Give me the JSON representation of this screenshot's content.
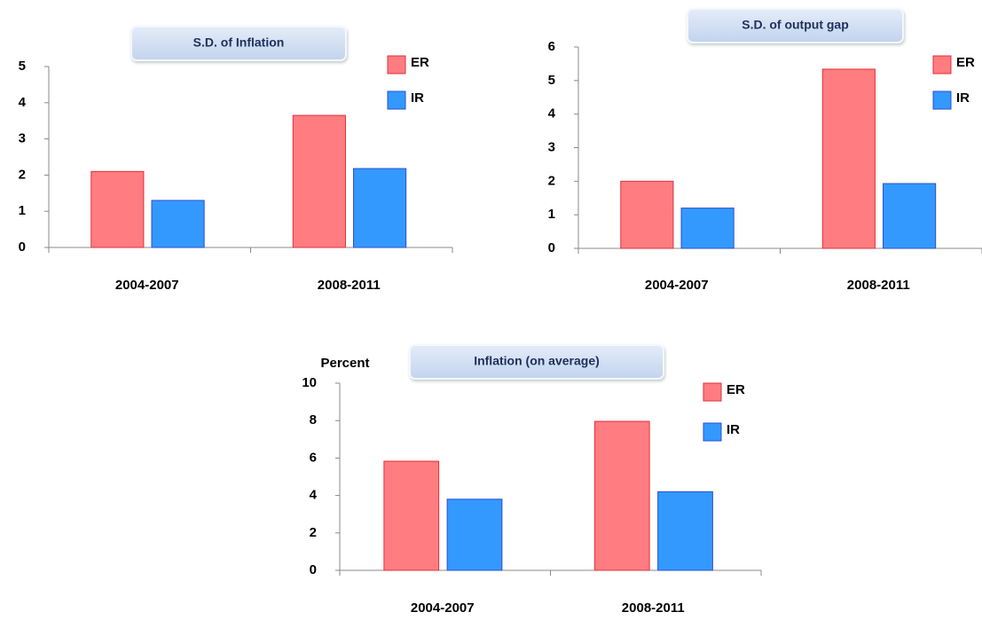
{
  "chart_data": [
    {
      "type": "bar",
      "title": "S.D. of Inflation",
      "categories": [
        "2004-2007",
        "2008-2011"
      ],
      "series": [
        {
          "name": "ER",
          "color": "#ff7c80",
          "values": [
            2.1,
            3.65
          ]
        },
        {
          "name": "IR",
          "color": "#3399ff",
          "values": [
            1.3,
            2.18
          ]
        }
      ],
      "ylim": [
        0,
        5
      ],
      "yticks": [
        0,
        1,
        2,
        3,
        4,
        5
      ]
    },
    {
      "type": "bar",
      "title": "S.D. of output gap",
      "categories": [
        "2004-2007",
        "2008-2011"
      ],
      "series": [
        {
          "name": "ER",
          "color": "#ff7c80",
          "values": [
            2.0,
            5.34
          ]
        },
        {
          "name": "IR",
          "color": "#3399ff",
          "values": [
            1.2,
            1.93
          ]
        }
      ],
      "ylim": [
        0,
        6
      ],
      "yticks": [
        0,
        1,
        2,
        3,
        4,
        5,
        6
      ]
    },
    {
      "type": "bar",
      "title": "Inflation (on average)",
      "ylabel": "Percent",
      "categories": [
        "2004-2007",
        "2008-2011"
      ],
      "series": [
        {
          "name": "ER",
          "color": "#ff7c80",
          "values": [
            5.83,
            7.96
          ]
        },
        {
          "name": "IR",
          "color": "#3399ff",
          "values": [
            3.8,
            4.2
          ]
        }
      ],
      "ylim": [
        0,
        10
      ],
      "yticks": [
        0,
        2,
        4,
        6,
        8,
        10
      ]
    }
  ]
}
